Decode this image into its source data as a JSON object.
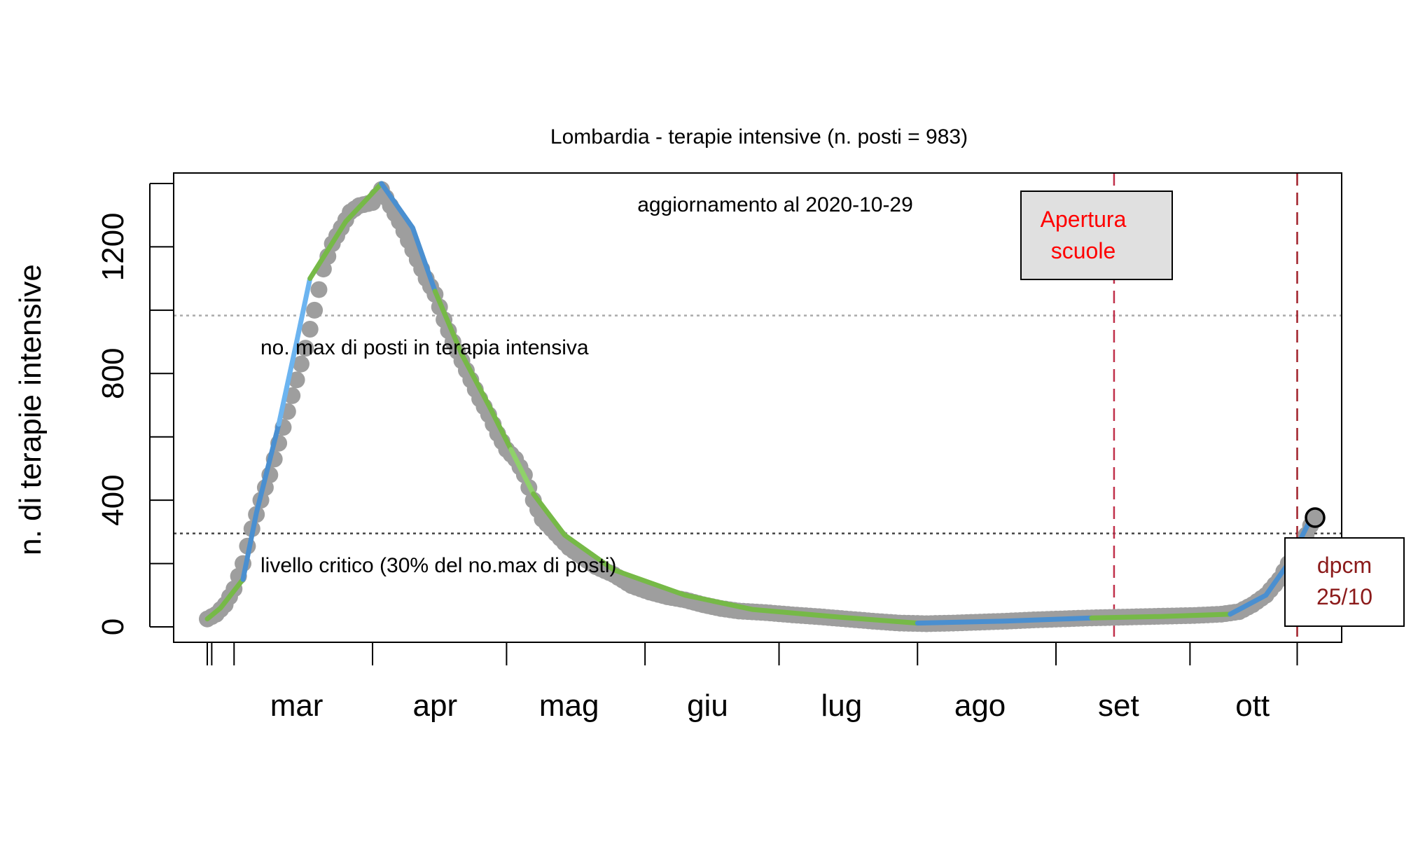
{
  "chart_data": {
    "type": "scatter",
    "title": "Lombardia - terapie intensive (n. posti = 983)",
    "ylabel": "n. di terapie intensive",
    "xlabel": "",
    "subtitle": "aggiornamento al 2020-10-29",
    "ylim": [
      0,
      1400
    ],
    "xlim": [
      "2020-02-21",
      "2020-10-31"
    ],
    "grid": false,
    "yticks": [
      0,
      400,
      800,
      1200
    ],
    "month_ticks": [
      "2020-02-24",
      "2020-02-25",
      "2020-03-01",
      "2020-04-01",
      "2020-05-01",
      "2020-06-01",
      "2020-07-01",
      "2020-08-01",
      "2020-09-01",
      "2020-10-01",
      "2020-10-25"
    ],
    "month_labels": [
      {
        "label": "mar",
        "date": "2020-03-15"
      },
      {
        "label": "apr",
        "date": "2020-04-15"
      },
      {
        "label": "mag",
        "date": "2020-05-15"
      },
      {
        "label": "giu",
        "date": "2020-06-15"
      },
      {
        "label": "lug",
        "date": "2020-07-15"
      },
      {
        "label": "ago",
        "date": "2020-08-15"
      },
      {
        "label": "set",
        "date": "2020-09-15"
      },
      {
        "label": "ott",
        "date": "2020-10-15"
      }
    ],
    "reference_lines": [
      {
        "value": 983,
        "label": "no. max di posti in terapia intensiva",
        "style": "dotted",
        "color": "#aaaaaa"
      },
      {
        "value": 295,
        "label": "livello critico (30% del no.max di posti)",
        "style": "dotted",
        "color": "#444444"
      }
    ],
    "events": [
      {
        "date": "2020-09-14",
        "label_lines": [
          "Apertura",
          "scuole"
        ],
        "color": "#c0304a",
        "label_color": "#ff0000",
        "box_fill": "#e0e0e0"
      },
      {
        "date": "2020-10-25",
        "label_lines": [
          "dpcm",
          "25/10"
        ],
        "color": "#a0202a",
        "label_color": "#8b1a1a",
        "box_fill": "#ffffff"
      }
    ],
    "series": [
      {
        "style": "points",
        "color": "#9e9e9e",
        "points": [
          [
            "2020-02-24",
            25
          ],
          [
            "2020-02-26",
            40
          ],
          [
            "2020-02-28",
            70
          ],
          [
            "2020-03-01",
            120
          ],
          [
            "2020-03-03",
            200
          ],
          [
            "2020-03-05",
            310
          ],
          [
            "2020-03-07",
            400
          ],
          [
            "2020-03-09",
            480
          ],
          [
            "2020-03-11",
            580
          ],
          [
            "2020-03-13",
            680
          ],
          [
            "2020-03-15",
            780
          ],
          [
            "2020-03-17",
            880
          ],
          [
            "2020-03-19",
            1000
          ],
          [
            "2020-03-21",
            1130
          ],
          [
            "2020-03-23",
            1210
          ],
          [
            "2020-03-25",
            1260
          ],
          [
            "2020-03-27",
            1310
          ],
          [
            "2020-03-29",
            1330
          ],
          [
            "2020-04-01",
            1340
          ],
          [
            "2020-04-03",
            1381
          ],
          [
            "2020-04-05",
            1330
          ],
          [
            "2020-04-07",
            1280
          ],
          [
            "2020-04-09",
            1220
          ],
          [
            "2020-04-11",
            1160
          ],
          [
            "2020-04-13",
            1100
          ],
          [
            "2020-04-15",
            1050
          ],
          [
            "2020-04-17",
            970
          ],
          [
            "2020-04-19",
            900
          ],
          [
            "2020-04-21",
            840
          ],
          [
            "2020-04-23",
            780
          ],
          [
            "2020-04-25",
            720
          ],
          [
            "2020-04-27",
            670
          ],
          [
            "2020-04-29",
            610
          ],
          [
            "2020-05-01",
            560
          ],
          [
            "2020-05-03",
            530
          ],
          [
            "2020-05-05",
            480
          ],
          [
            "2020-05-07",
            400
          ],
          [
            "2020-05-09",
            340
          ],
          [
            "2020-05-11",
            310
          ],
          [
            "2020-05-13",
            280
          ],
          [
            "2020-05-15",
            250
          ],
          [
            "2020-05-18",
            220
          ],
          [
            "2020-05-21",
            190
          ],
          [
            "2020-05-25",
            165
          ],
          [
            "2020-05-29",
            130
          ],
          [
            "2020-06-02",
            110
          ],
          [
            "2020-06-06",
            95
          ],
          [
            "2020-06-10",
            85
          ],
          [
            "2020-06-14",
            70
          ],
          [
            "2020-06-18",
            58
          ],
          [
            "2020-06-22",
            50
          ],
          [
            "2020-06-28",
            45
          ],
          [
            "2020-07-04",
            38
          ],
          [
            "2020-07-10",
            32
          ],
          [
            "2020-07-16",
            25
          ],
          [
            "2020-07-22",
            18
          ],
          [
            "2020-07-28",
            12
          ],
          [
            "2020-08-03",
            10
          ],
          [
            "2020-08-09",
            12
          ],
          [
            "2020-08-15",
            15
          ],
          [
            "2020-08-21",
            18
          ],
          [
            "2020-08-27",
            22
          ],
          [
            "2020-09-02",
            25
          ],
          [
            "2020-09-08",
            28
          ],
          [
            "2020-09-14",
            30
          ],
          [
            "2020-09-20",
            32
          ],
          [
            "2020-09-26",
            34
          ],
          [
            "2020-10-02",
            36
          ],
          [
            "2020-10-08",
            40
          ],
          [
            "2020-10-12",
            48
          ],
          [
            "2020-10-15",
            70
          ],
          [
            "2020-10-18",
            100
          ],
          [
            "2020-10-21",
            150
          ],
          [
            "2020-10-23",
            200
          ],
          [
            "2020-10-25",
            230
          ],
          [
            "2020-10-27",
            290
          ],
          [
            "2020-10-28",
            320
          ]
        ]
      },
      {
        "style": "lines",
        "segments": [
          {
            "color": "#76b947",
            "points": [
              [
                "2020-02-24",
                25
              ],
              [
                "2020-02-27",
                60
              ],
              [
                "2020-03-03",
                150
              ]
            ]
          },
          {
            "color": "#4a8fd0",
            "points": [
              [
                "2020-03-03",
                150
              ],
              [
                "2020-03-06",
                360
              ],
              [
                "2020-03-11",
                640
              ]
            ]
          },
          {
            "color": "#6cb4f0",
            "points": [
              [
                "2020-03-11",
                640
              ],
              [
                "2020-03-15",
                900
              ],
              [
                "2020-03-18",
                1100
              ]
            ]
          },
          {
            "color": "#76b947",
            "points": [
              [
                "2020-03-18",
                1100
              ],
              [
                "2020-03-26",
                1280
              ],
              [
                "2020-04-03",
                1400
              ]
            ]
          },
          {
            "color": "#4a8fd0",
            "points": [
              [
                "2020-04-03",
                1400
              ],
              [
                "2020-04-10",
                1260
              ],
              [
                "2020-04-15",
                1060
              ]
            ]
          },
          {
            "color": "#76b947",
            "points": [
              [
                "2020-04-15",
                1060
              ],
              [
                "2020-04-21",
                860
              ],
              [
                "2020-04-27",
                700
              ],
              [
                "2020-05-02",
                560
              ]
            ]
          },
          {
            "color": "#8fd16a",
            "points": [
              [
                "2020-05-02",
                560
              ],
              [
                "2020-05-07",
                420
              ]
            ]
          },
          {
            "color": "#76b947",
            "points": [
              [
                "2020-05-07",
                420
              ],
              [
                "2020-05-14",
                290
              ],
              [
                "2020-05-25",
                180
              ],
              [
                "2020-06-10",
                100
              ],
              [
                "2020-06-25",
                55
              ],
              [
                "2020-07-15",
                30
              ],
              [
                "2020-08-01",
                12
              ]
            ]
          },
          {
            "color": "#4a8fd0",
            "points": [
              [
                "2020-08-01",
                12
              ],
              [
                "2020-08-20",
                18
              ],
              [
                "2020-09-09",
                28
              ]
            ]
          },
          {
            "color": "#76b947",
            "points": [
              [
                "2020-09-09",
                28
              ],
              [
                "2020-09-25",
                33
              ],
              [
                "2020-10-10",
                40
              ]
            ]
          },
          {
            "color": "#4a8fd0",
            "points": [
              [
                "2020-10-10",
                40
              ],
              [
                "2020-10-18",
                100
              ],
              [
                "2020-10-23",
                200
              ],
              [
                "2020-10-28",
                340
              ]
            ]
          }
        ]
      },
      {
        "style": "marker",
        "color": "#000000",
        "points": [
          [
            "2020-10-29",
            345
          ]
        ]
      }
    ]
  }
}
